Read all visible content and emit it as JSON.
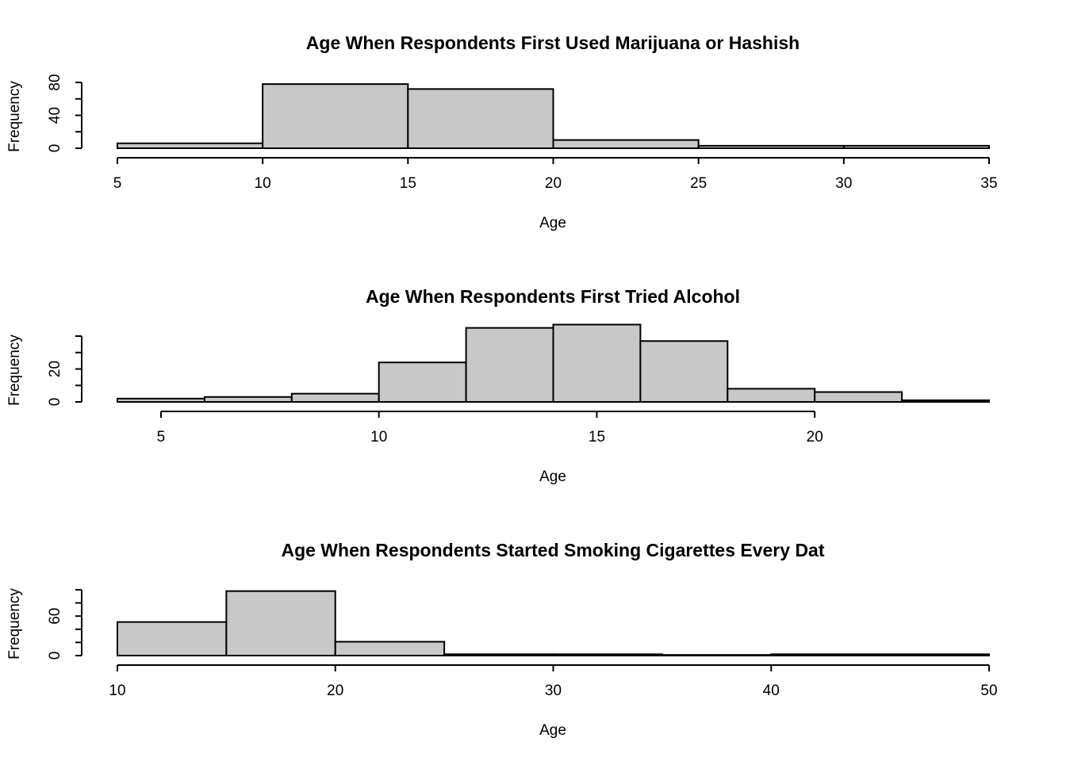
{
  "chart_data": [
    {
      "type": "bar",
      "title": "Age When Respondents First Used Marijuana or Hashish",
      "xlabel": "Age",
      "ylabel": "Frequency",
      "bin_edges": [
        5,
        10,
        15,
        20,
        25,
        30,
        35
      ],
      "values": [
        6,
        78,
        72,
        10,
        3,
        3
      ],
      "xlim": [
        5,
        35
      ],
      "ylim": [
        0,
        80
      ],
      "x_ticks": [
        5,
        10,
        15,
        20,
        25,
        30,
        35
      ],
      "y_ticks": [
        0,
        20,
        40,
        60,
        80
      ],
      "y_tick_labels": [
        0,
        40,
        80
      ]
    },
    {
      "type": "bar",
      "title": "Age When Respondents First Tried Alcohol",
      "xlabel": "Age",
      "ylabel": "Frequency",
      "bin_edges": [
        4,
        6,
        8,
        10,
        12,
        14,
        16,
        18,
        20,
        22,
        24
      ],
      "values": [
        2,
        3,
        5,
        24,
        45,
        47,
        37,
        8,
        6,
        1
      ],
      "xlim": [
        4,
        24
      ],
      "ylim": [
        0,
        40
      ],
      "x_ticks": [
        5,
        10,
        15,
        20
      ],
      "y_ticks": [
        0,
        10,
        20,
        30,
        40
      ],
      "y_tick_labels": [
        0,
        20
      ]
    },
    {
      "type": "bar",
      "title": "Age When Respondents Started Smoking Cigarettes Every Dat",
      "xlabel": "Age",
      "ylabel": "Frequency",
      "bin_edges": [
        10,
        15,
        20,
        25,
        30,
        35,
        40,
        45,
        50
      ],
      "values": [
        51,
        98,
        21,
        2,
        2,
        1,
        2,
        2
      ],
      "xlim": [
        10,
        50
      ],
      "ylim": [
        0,
        100
      ],
      "x_ticks": [
        10,
        20,
        30,
        40,
        50
      ],
      "y_ticks": [
        0,
        20,
        40,
        60,
        80,
        100
      ],
      "y_tick_labels": [
        0,
        60
      ]
    }
  ]
}
